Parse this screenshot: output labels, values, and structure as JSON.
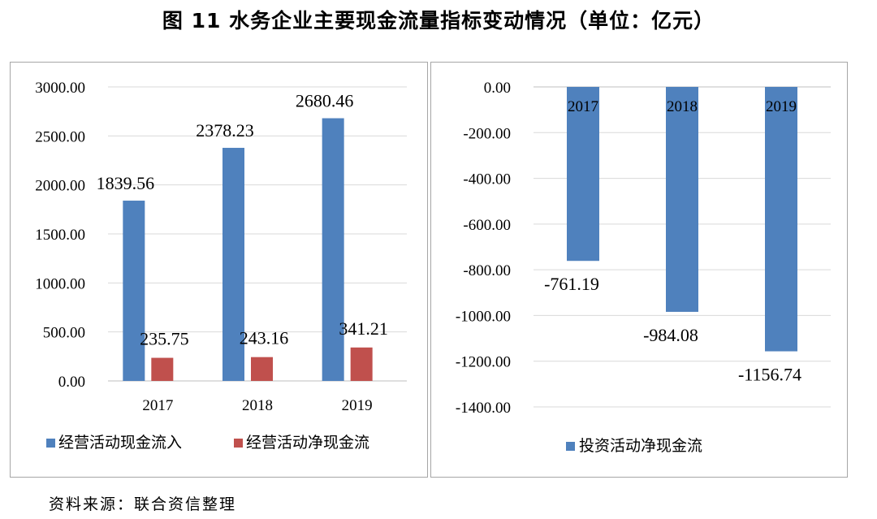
{
  "title": "图 11    水务企业主要现金流量指标变动情况（单位：亿元）",
  "source": "资料来源：联合资信整理",
  "colors": {
    "blue": "#4f81bd",
    "red": "#c0504d",
    "grid": "#d9d9d9"
  },
  "chart_data": [
    {
      "type": "bar",
      "categories": [
        "2017",
        "2018",
        "2019"
      ],
      "series": [
        {
          "name": "经营活动现金流入",
          "values": [
            1839.56,
            2378.23,
            2680.46
          ],
          "labels": [
            "1839.56",
            "2378.23",
            "2680.46"
          ],
          "color": "#4f81bd"
        },
        {
          "name": "经营活动净现金流",
          "values": [
            235.75,
            243.16,
            341.21
          ],
          "labels": [
            "235.75",
            "243.16",
            "341.21"
          ],
          "color": "#c0504d"
        }
      ],
      "ylim": [
        0,
        3000
      ],
      "yticks": [
        "0.00",
        "500.00",
        "1000.00",
        "1500.00",
        "2000.00",
        "2500.00",
        "3000.00"
      ],
      "grid": true,
      "legend": "bottom"
    },
    {
      "type": "bar",
      "categories": [
        "2017",
        "2018",
        "2019"
      ],
      "series": [
        {
          "name": "投资活动净现金流",
          "values": [
            -761.19,
            -984.08,
            -1156.74
          ],
          "labels": [
            "-761.19",
            "-984.08",
            "-1156.74"
          ],
          "color": "#4f81bd"
        }
      ],
      "ylim": [
        -1400,
        0
      ],
      "yticks": [
        "0.00",
        "-200.00",
        "-400.00",
        "-600.00",
        "-800.00",
        "-1000.00",
        "-1200.00",
        "-1400.00"
      ],
      "grid": true,
      "legend": "bottom"
    }
  ]
}
